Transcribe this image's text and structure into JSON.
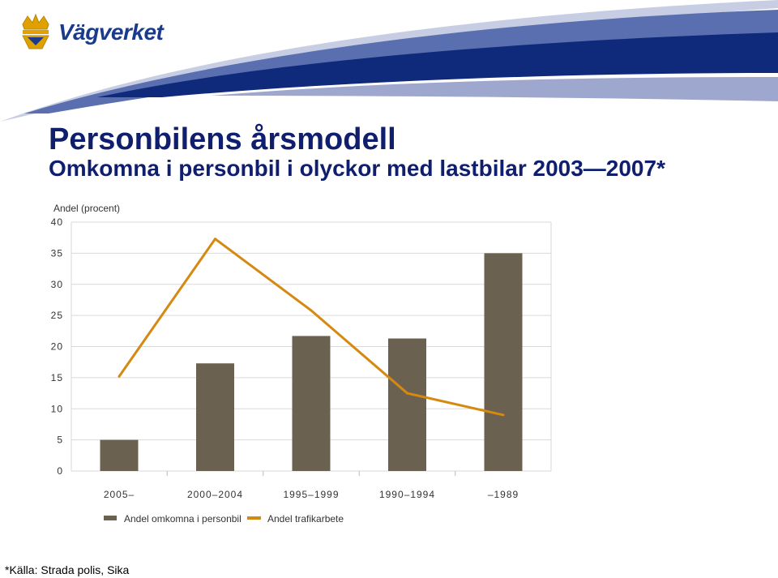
{
  "brand": {
    "name": "Vägverket"
  },
  "title": "Personbilens årsmodell",
  "subtitle": "Omkomna i personbil i olyckor med lastbilar 2003—2007*",
  "footnote": "*Källa: Strada polis, Sika",
  "colors": {
    "navy": "#0f1f6e",
    "bar": "#6b6150",
    "line": "#d68910",
    "grid": "#d9d9d9"
  },
  "chart_data": {
    "type": "bar",
    "ylabel": "Andel (procent)",
    "ylim": [
      0,
      40
    ],
    "yticks": [
      0,
      5,
      10,
      15,
      20,
      25,
      30,
      35,
      40
    ],
    "categories": [
      "2005–",
      "2000–2004",
      "1995–1999",
      "1990–1994",
      "–1989"
    ],
    "series": [
      {
        "name": "Andel omkomna i personbil",
        "type": "bar",
        "values": [
          5,
          17.3,
          21.7,
          21.3,
          35
        ]
      },
      {
        "name": "Andel trafikarbete",
        "type": "line",
        "values": [
          15.2,
          37.3,
          25.8,
          12.5,
          9
        ]
      }
    ],
    "grid": true,
    "legend": "bottom"
  }
}
